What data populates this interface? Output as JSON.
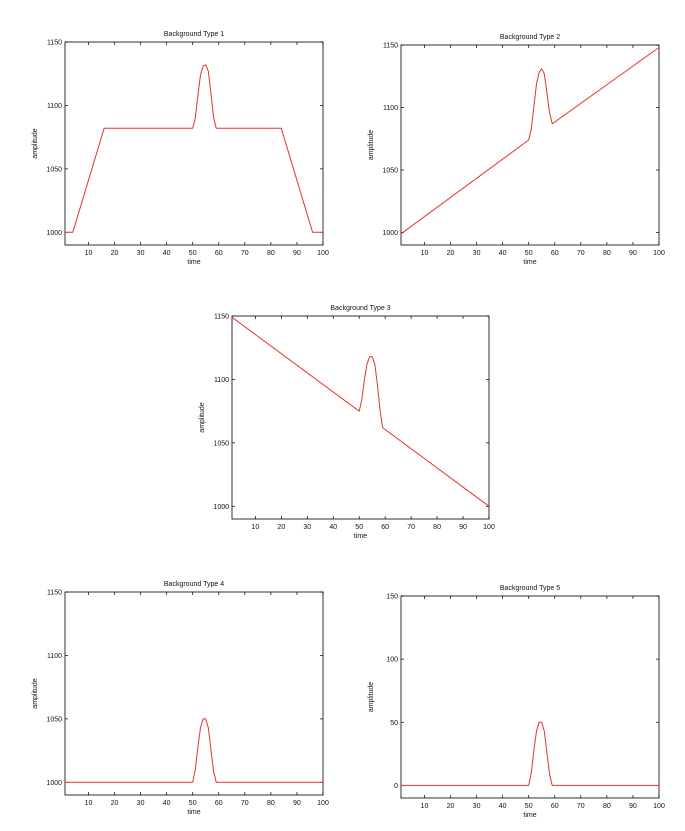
{
  "chart_data": [
    {
      "type": "line",
      "title": "Background Type 1",
      "xlabel": "time",
      "ylabel": "amplitude",
      "xlim": [
        1,
        100
      ],
      "ylim": [
        990,
        1150
      ],
      "xticks": [
        10,
        20,
        30,
        40,
        50,
        60,
        70,
        80,
        90,
        100
      ],
      "yticks": [
        1000,
        1050,
        1100,
        1150
      ],
      "line_color": "#e8342a",
      "series": [
        {
          "x": [
            1,
            4,
            16,
            50,
            51,
            52,
            53,
            54,
            55,
            56,
            57,
            58,
            59,
            60,
            84,
            96,
            100
          ],
          "y": [
            1000,
            1000,
            1082,
            1082,
            1090,
            1108,
            1124,
            1131,
            1132,
            1127,
            1110,
            1091,
            1082,
            1082,
            1082,
            1000,
            1000
          ]
        }
      ]
    },
    {
      "type": "line",
      "title": "Background Type 2",
      "xlabel": "time",
      "ylabel": "amplitude",
      "xlim": [
        1,
        100
      ],
      "ylim": [
        990,
        1150
      ],
      "xticks": [
        10,
        20,
        30,
        40,
        50,
        60,
        70,
        80,
        90,
        100
      ],
      "yticks": [
        1000,
        1050,
        1100,
        1150
      ],
      "line_color": "#e8342a",
      "series": [
        {
          "x": [
            1,
            50,
            51,
            52,
            53,
            54,
            55,
            56,
            57,
            58,
            59,
            100
          ],
          "y": [
            999,
            1074,
            1083,
            1101,
            1119,
            1128,
            1131,
            1127,
            1112,
            1096,
            1087,
            1148
          ]
        }
      ]
    },
    {
      "type": "line",
      "title": "Background Type 3",
      "xlabel": "time",
      "ylabel": "amplitude",
      "xlim": [
        1,
        100
      ],
      "ylim": [
        990,
        1150
      ],
      "xticks": [
        10,
        20,
        30,
        40,
        50,
        60,
        70,
        80,
        90,
        100
      ],
      "yticks": [
        1000,
        1050,
        1100,
        1150
      ],
      "line_color": "#e8342a",
      "series": [
        {
          "x": [
            1,
            50,
            51,
            52,
            53,
            54,
            55,
            56,
            57,
            58,
            59,
            100
          ],
          "y": [
            1149,
            1075,
            1084,
            1100,
            1112,
            1118,
            1118,
            1112,
            1096,
            1076,
            1062,
            1000
          ]
        }
      ]
    },
    {
      "type": "line",
      "title": "Background Type 4",
      "xlabel": "time",
      "ylabel": "amplitude",
      "xlim": [
        1,
        100
      ],
      "ylim": [
        990,
        1150
      ],
      "xticks": [
        10,
        20,
        30,
        40,
        50,
        60,
        70,
        80,
        90,
        100
      ],
      "yticks": [
        1000,
        1050,
        1100,
        1150
      ],
      "line_color": "#e8342a",
      "series": [
        {
          "x": [
            1,
            50,
            51,
            52,
            53,
            54,
            55,
            56,
            57,
            58,
            59,
            100
          ],
          "y": [
            1000,
            1000,
            1010,
            1028,
            1043,
            1050,
            1050,
            1043,
            1026,
            1009,
            1000,
            1000
          ]
        }
      ]
    },
    {
      "type": "line",
      "title": "Background Type 5",
      "xlabel": "time",
      "ylabel": "amplitude",
      "xlim": [
        1,
        100
      ],
      "ylim": [
        -10,
        150
      ],
      "xticks": [
        10,
        20,
        30,
        40,
        50,
        60,
        70,
        80,
        90,
        100
      ],
      "yticks": [
        0,
        50,
        100,
        150
      ],
      "line_color": "#e8342a",
      "series": [
        {
          "x": [
            1,
            50,
            51,
            52,
            53,
            54,
            55,
            56,
            57,
            58,
            59,
            100
          ],
          "y": [
            0,
            0,
            10,
            28,
            43,
            50,
            50,
            43,
            26,
            9,
            0,
            0
          ]
        }
      ]
    }
  ]
}
